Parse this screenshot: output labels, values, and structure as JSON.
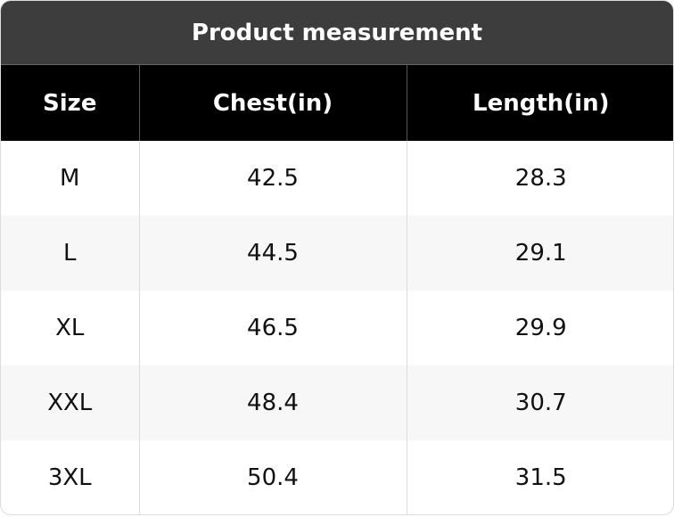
{
  "title": "Product measurement",
  "table": {
    "header": [
      "Size",
      "Chest(in)",
      "Length(in)"
    ],
    "rows": [
      [
        "M",
        "42.5",
        "28.3"
      ],
      [
        "L",
        "44.5",
        "29.1"
      ],
      [
        "XL",
        "46.5",
        "29.9"
      ],
      [
        "XXL",
        "48.4",
        "30.7"
      ],
      [
        "3XL",
        "50.4",
        "31.5"
      ]
    ]
  }
}
